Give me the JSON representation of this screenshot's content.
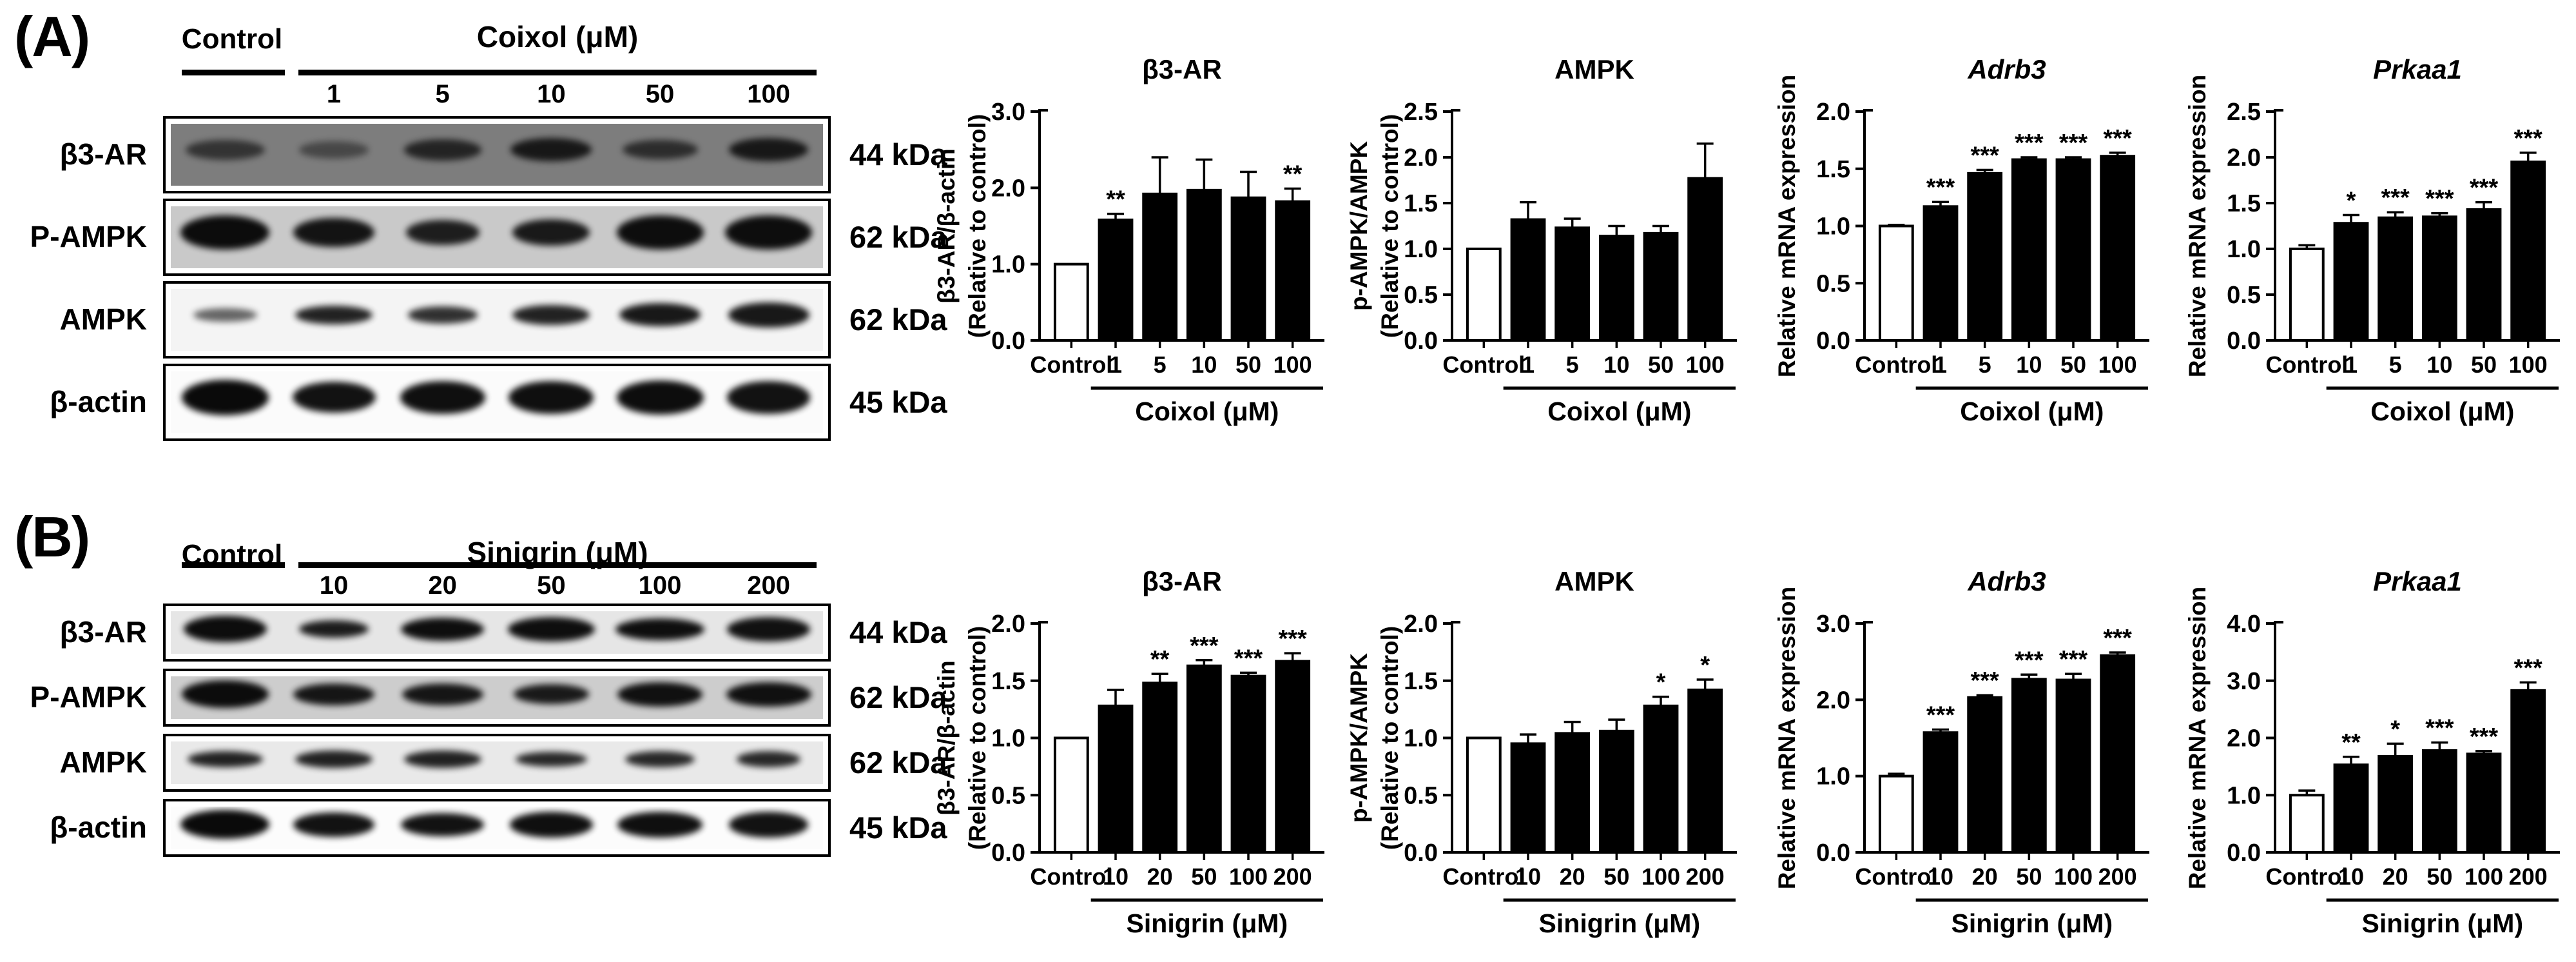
{
  "figure": {
    "panels": [
      {
        "id": "A",
        "label": "(A)",
        "blot": {
          "control_label": "Control",
          "treatment_label": "Coixol (μM)",
          "doses": [
            "1",
            "5",
            "10",
            "50",
            "100"
          ],
          "rows": [
            {
              "protein": "β3-AR",
              "kda": "44 kDa",
              "bg": "#7d7d7d",
              "noisy": true,
              "bands": [
                [
                  0.62,
                  0.82,
                  0.26
                ],
                [
                  0.45,
                  0.72,
                  0.22
                ],
                [
                  0.75,
                  0.8,
                  0.27
                ],
                [
                  0.85,
                  0.84,
                  0.3
                ],
                [
                  0.68,
                  0.78,
                  0.25
                ],
                [
                  0.85,
                  0.82,
                  0.3
                ]
              ]
            },
            {
              "protein": "P-AMPK",
              "kda": "62 kDa",
              "bg": "#c9c9c9",
              "noisy": true,
              "bands": [
                [
                  0.97,
                  0.92,
                  0.44
                ],
                [
                  0.93,
                  0.84,
                  0.38
                ],
                [
                  0.88,
                  0.76,
                  0.32
                ],
                [
                  0.9,
                  0.8,
                  0.34
                ],
                [
                  0.96,
                  0.9,
                  0.44
                ],
                [
                  0.96,
                  0.9,
                  0.44
                ]
              ]
            },
            {
              "protein": "AMPK",
              "kda": "62 kDa",
              "bg": "#f4f4f4",
              "noisy": false,
              "bands": [
                [
                  0.6,
                  0.66,
                  0.18
                ],
                [
                  0.88,
                  0.8,
                  0.24
                ],
                [
                  0.82,
                  0.72,
                  0.22
                ],
                [
                  0.88,
                  0.8,
                  0.26
                ],
                [
                  0.92,
                  0.84,
                  0.3
                ],
                [
                  0.92,
                  0.84,
                  0.32
                ]
              ]
            },
            {
              "protein": "β-actin",
              "kda": "45 kDa",
              "bg": "#fbfbfb",
              "noisy": false,
              "bands": [
                [
                  0.98,
                  0.9,
                  0.46
                ],
                [
                  0.95,
                  0.86,
                  0.4
                ],
                [
                  0.96,
                  0.88,
                  0.42
                ],
                [
                  0.96,
                  0.88,
                  0.42
                ],
                [
                  0.97,
                  0.9,
                  0.44
                ],
                [
                  0.95,
                  0.86,
                  0.42
                ]
              ]
            }
          ]
        }
      },
      {
        "id": "B",
        "label": "(B)",
        "blot": {
          "control_label": "Control",
          "treatment_label": "Sinigrin (μM)",
          "doses": [
            "10",
            "20",
            "50",
            "100",
            "200"
          ],
          "rows": [
            {
              "protein": "β3-AR",
              "kda": "44 kDa",
              "bg": "#e6e6e6",
              "noisy": true,
              "bands": [
                [
                  0.97,
                  0.86,
                  0.46
                ],
                [
                  0.9,
                  0.72,
                  0.3
                ],
                [
                  0.96,
                  0.86,
                  0.4
                ],
                [
                  0.96,
                  0.9,
                  0.42
                ],
                [
                  0.96,
                  0.92,
                  0.38
                ],
                [
                  0.95,
                  0.86,
                  0.42
                ]
              ]
            },
            {
              "protein": "P-AMPK",
              "kda": "62 kDa",
              "bg": "#cdcdcd",
              "noisy": true,
              "bands": [
                [
                  0.97,
                  0.9,
                  0.48
                ],
                [
                  0.92,
                  0.84,
                  0.38
                ],
                [
                  0.92,
                  0.84,
                  0.38
                ],
                [
                  0.9,
                  0.78,
                  0.34
                ],
                [
                  0.95,
                  0.88,
                  0.42
                ],
                [
                  0.95,
                  0.88,
                  0.42
                ]
              ]
            },
            {
              "protein": "AMPK",
              "kda": "62 kDa",
              "bg": "#e9e9e9",
              "noisy": true,
              "bands": [
                [
                  0.88,
                  0.78,
                  0.28
                ],
                [
                  0.88,
                  0.8,
                  0.3
                ],
                [
                  0.88,
                  0.8,
                  0.3
                ],
                [
                  0.85,
                  0.74,
                  0.26
                ],
                [
                  0.85,
                  0.72,
                  0.28
                ],
                [
                  0.85,
                  0.66,
                  0.28
                ]
              ]
            },
            {
              "protein": "β-actin",
              "kda": "45 kDa",
              "bg": "#fcfcfc",
              "noisy": false,
              "bands": [
                [
                  0.98,
                  0.92,
                  0.5
                ],
                [
                  0.95,
                  0.84,
                  0.42
                ],
                [
                  0.95,
                  0.86,
                  0.4
                ],
                [
                  0.96,
                  0.86,
                  0.44
                ],
                [
                  0.96,
                  0.88,
                  0.44
                ],
                [
                  0.95,
                  0.82,
                  0.44
                ]
              ]
            }
          ]
        }
      }
    ]
  },
  "colors": {
    "bar_control": "#ffffff",
    "bar_treated": "#000000",
    "axis": "#000000"
  },
  "chart_data": [
    {
      "panel": "A",
      "type": "bar",
      "title": "β3-AR",
      "title_italic": false,
      "ylabel_lines": [
        "β3-AR/β-actin",
        "(Relative to control)"
      ],
      "categories": [
        "Control",
        "1",
        "5",
        "10",
        "50",
        "100"
      ],
      "values": [
        1.0,
        1.58,
        1.92,
        1.97,
        1.87,
        1.82
      ],
      "errors": [
        0,
        0.08,
        0.48,
        0.4,
        0.34,
        0.17
      ],
      "significance": [
        "",
        "**",
        "",
        "",
        "",
        "**"
      ],
      "ylim": [
        0,
        3.0
      ],
      "yticks": [
        0.0,
        1.0,
        2.0,
        3.0
      ],
      "group_label": "Coixol (μM)",
      "bar_fills": [
        "#ffffff",
        "#000000",
        "#000000",
        "#000000",
        "#000000",
        "#000000"
      ]
    },
    {
      "panel": "A",
      "type": "bar",
      "title": "AMPK",
      "title_italic": false,
      "ylabel_lines": [
        "p-AMPK/AMPK",
        "(Relative to control)"
      ],
      "categories": [
        "Control",
        "1",
        "5",
        "10",
        "50",
        "100"
      ],
      "values": [
        1.0,
        1.32,
        1.23,
        1.14,
        1.17,
        1.77
      ],
      "errors": [
        0,
        0.19,
        0.1,
        0.11,
        0.08,
        0.38
      ],
      "significance": [
        "",
        "",
        "",
        "",
        "",
        ""
      ],
      "ylim": [
        0,
        2.5
      ],
      "yticks": [
        0.0,
        0.5,
        1.0,
        1.5,
        2.0,
        2.5
      ],
      "group_label": "Coixol (μM)",
      "bar_fills": [
        "#ffffff",
        "#000000",
        "#000000",
        "#000000",
        "#000000",
        "#000000"
      ]
    },
    {
      "panel": "A",
      "type": "bar",
      "title": "Adrb3",
      "title_italic": true,
      "ylabel_lines": [
        "Relative mRNA expression"
      ],
      "categories": [
        "Control",
        "1",
        "5",
        "10",
        "50",
        "100"
      ],
      "values": [
        1.0,
        1.17,
        1.46,
        1.58,
        1.58,
        1.61
      ],
      "errors": [
        0.01,
        0.04,
        0.03,
        0.02,
        0.02,
        0.03
      ],
      "significance": [
        "",
        "***",
        "***",
        "***",
        "***",
        "***"
      ],
      "ylim": [
        0,
        2.0
      ],
      "yticks": [
        0.0,
        0.5,
        1.0,
        1.5,
        2.0
      ],
      "group_label": "Coixol (μM)",
      "bar_fills": [
        "#ffffff",
        "#000000",
        "#000000",
        "#000000",
        "#000000",
        "#000000"
      ]
    },
    {
      "panel": "A",
      "type": "bar",
      "title": "Prkaa1",
      "title_italic": true,
      "ylabel_lines": [
        "Relative mRNA expression"
      ],
      "categories": [
        "Control",
        "1",
        "5",
        "10",
        "50",
        "100"
      ],
      "values": [
        1.0,
        1.28,
        1.34,
        1.35,
        1.43,
        1.95
      ],
      "errors": [
        0.04,
        0.09,
        0.06,
        0.04,
        0.08,
        0.1
      ],
      "significance": [
        "",
        "*",
        "***",
        "***",
        "***",
        "***"
      ],
      "ylim": [
        0,
        2.5
      ],
      "yticks": [
        0.0,
        0.5,
        1.0,
        1.5,
        2.0,
        2.5
      ],
      "group_label": "Coixol (μM)",
      "bar_fills": [
        "#ffffff",
        "#000000",
        "#000000",
        "#000000",
        "#000000",
        "#000000"
      ]
    },
    {
      "panel": "B",
      "type": "bar",
      "title": "β3-AR",
      "title_italic": false,
      "ylabel_lines": [
        "β3-AR/β-actin",
        "(Relative to control)"
      ],
      "categories": [
        "Control",
        "10",
        "20",
        "50",
        "100",
        "200"
      ],
      "values": [
        1.0,
        1.28,
        1.48,
        1.63,
        1.54,
        1.67
      ],
      "errors": [
        0,
        0.14,
        0.08,
        0.05,
        0.03,
        0.07
      ],
      "significance": [
        "",
        "",
        "**",
        "***",
        "***",
        "***"
      ],
      "ylim": [
        0,
        2.0
      ],
      "yticks": [
        0.0,
        0.5,
        1.0,
        1.5,
        2.0
      ],
      "group_label": "Sinigrin (μM)",
      "bar_fills": [
        "#ffffff",
        "#000000",
        "#000000",
        "#000000",
        "#000000",
        "#000000"
      ]
    },
    {
      "panel": "B",
      "type": "bar",
      "title": "AMPK",
      "title_italic": false,
      "ylabel_lines": [
        "p-AMPK/AMPK",
        "(Relative to control)"
      ],
      "categories": [
        "Control",
        "10",
        "20",
        "50",
        "100",
        "200"
      ],
      "values": [
        1.0,
        0.95,
        1.04,
        1.06,
        1.28,
        1.42
      ],
      "errors": [
        0,
        0.08,
        0.1,
        0.1,
        0.08,
        0.09
      ],
      "significance": [
        "",
        "",
        "",
        "",
        "*",
        "*"
      ],
      "ylim": [
        0,
        2.0
      ],
      "yticks": [
        0.0,
        0.5,
        1.0,
        1.5,
        2.0
      ],
      "group_label": "Sinigrin (μM)",
      "bar_fills": [
        "#ffffff",
        "#000000",
        "#000000",
        "#000000",
        "#000000",
        "#000000"
      ]
    },
    {
      "panel": "B",
      "type": "bar",
      "title": "Adrb3",
      "title_italic": true,
      "ylabel_lines": [
        "Relative mRNA expression"
      ],
      "categories": [
        "Control",
        "10",
        "20",
        "50",
        "100",
        "200"
      ],
      "values": [
        1.0,
        1.57,
        2.03,
        2.27,
        2.26,
        2.58
      ],
      "errors": [
        0.03,
        0.04,
        0.03,
        0.06,
        0.08,
        0.04
      ],
      "significance": [
        "",
        "***",
        "***",
        "***",
        "***",
        "***"
      ],
      "ylim": [
        0,
        3.0
      ],
      "yticks": [
        0.0,
        1.0,
        2.0,
        3.0
      ],
      "group_label": "Sinigrin (μM)",
      "bar_fills": [
        "#ffffff",
        "#000000",
        "#000000",
        "#000000",
        "#000000",
        "#000000"
      ]
    },
    {
      "panel": "B",
      "type": "bar",
      "title": "Prkaa1",
      "title_italic": true,
      "ylabel_lines": [
        "Relative mRNA expression"
      ],
      "categories": [
        "Control",
        "10",
        "20",
        "50",
        "100",
        "200"
      ],
      "values": [
        1.0,
        1.53,
        1.68,
        1.78,
        1.72,
        2.83
      ],
      "errors": [
        0.08,
        0.14,
        0.22,
        0.14,
        0.05,
        0.14
      ],
      "significance": [
        "",
        "**",
        "*",
        "***",
        "***",
        "***"
      ],
      "ylim": [
        0,
        4.0
      ],
      "yticks": [
        0.0,
        1.0,
        2.0,
        3.0,
        4.0
      ],
      "group_label": "Sinigrin (μM)",
      "bar_fills": [
        "#ffffff",
        "#000000",
        "#000000",
        "#000000",
        "#000000",
        "#000000"
      ]
    }
  ]
}
